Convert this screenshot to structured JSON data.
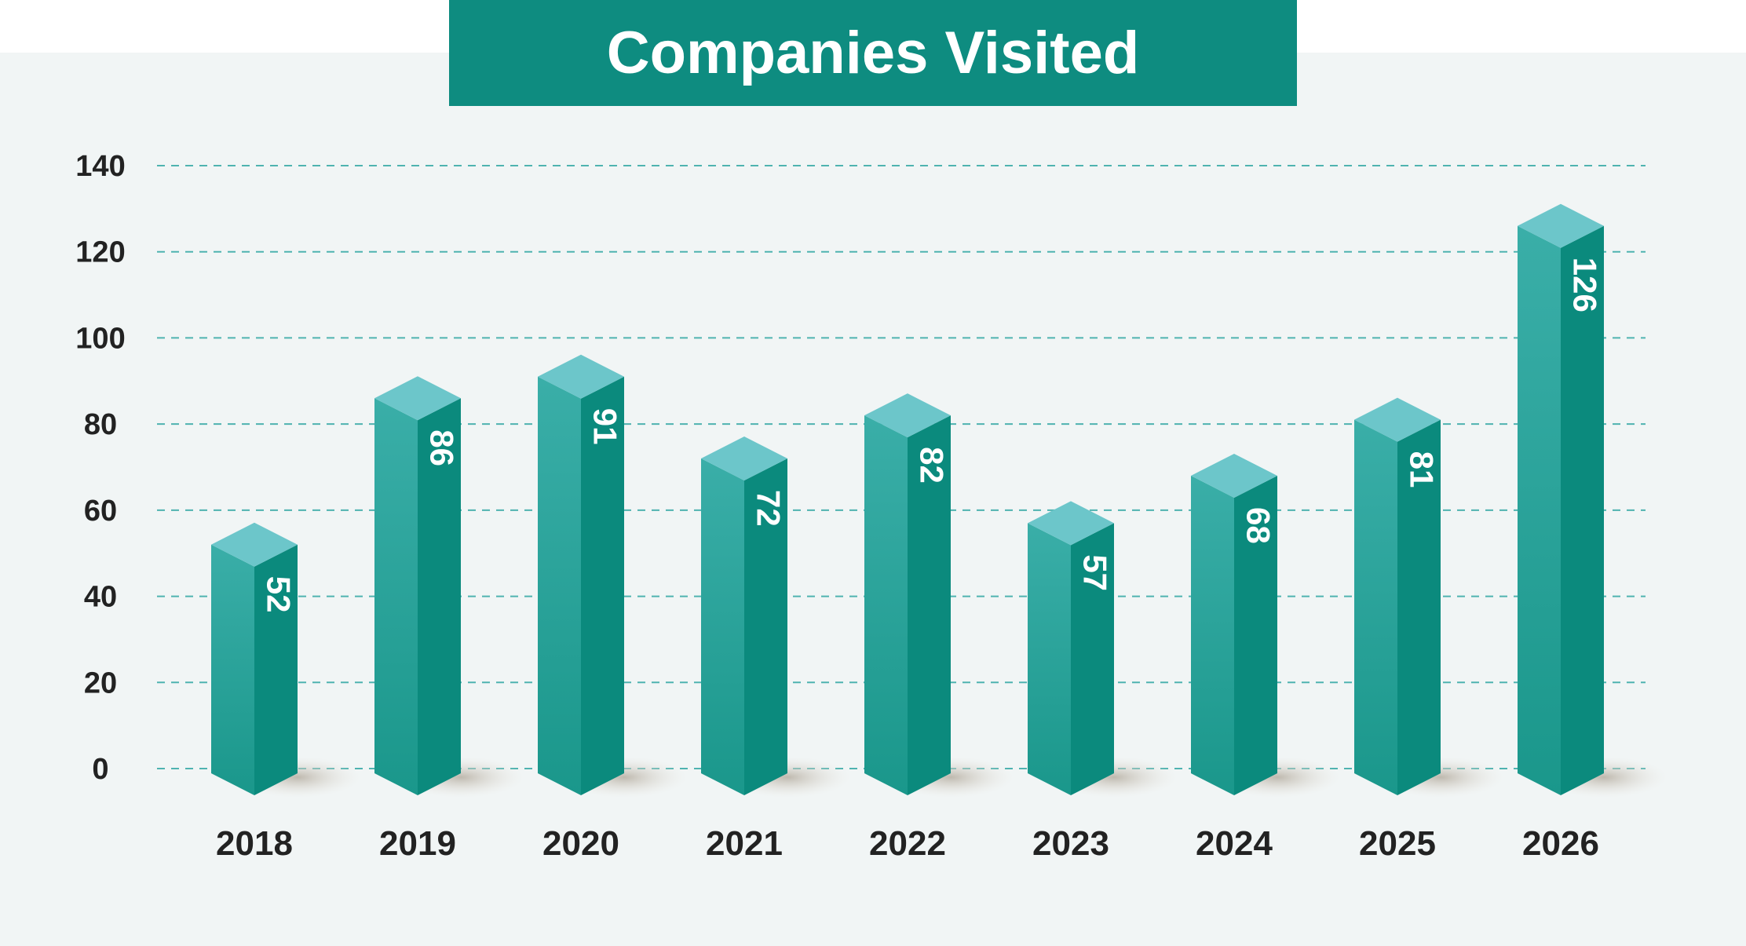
{
  "chart_data": {
    "type": "bar",
    "title": "Companies Visited",
    "categories": [
      "2018",
      "2019",
      "2020",
      "2021",
      "2022",
      "2023",
      "2024",
      "2025",
      "2026"
    ],
    "values": [
      52,
      86,
      91,
      72,
      82,
      57,
      68,
      81,
      126
    ],
    "ylim": [
      0,
      140
    ],
    "yticks": [
      0,
      20,
      40,
      60,
      80,
      100,
      120,
      140
    ],
    "xlabel": "",
    "ylabel": "",
    "grid": true,
    "style": "3d-column",
    "colors": {
      "front": "#2aa39a",
      "side": "#0b8a7d",
      "top": "#6cc6ca",
      "grid": "#4fb3b0",
      "title_bg": "#0e8c80"
    }
  }
}
